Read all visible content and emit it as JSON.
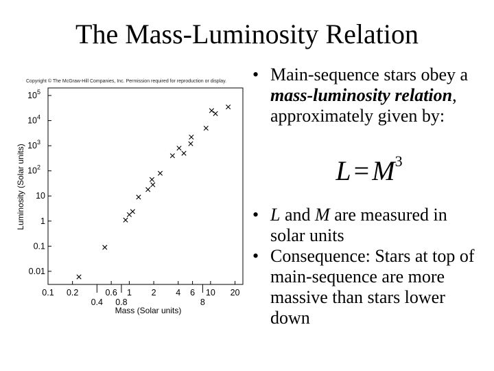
{
  "slide": {
    "title": "The Mass-Luminosity Relation"
  },
  "bullets": {
    "b1": {
      "pre": "Main-sequence stars obey a ",
      "em": "mass-luminosity relation",
      "post": ", approximately given by:"
    },
    "formula": {
      "lhs": "L",
      "eq": "=",
      "rhs": "M",
      "exp": "3"
    },
    "b2": {
      "v1": "L",
      "mid": " and ",
      "v2": "M",
      "post": " are measured in solar units"
    },
    "b3": {
      "text": "Consequence: Stars at top of main-sequence are more massive than stars lower down"
    }
  },
  "chart_data": {
    "type": "scatter",
    "copyright": "Copyright © The McGraw-Hill Companies, Inc. Permission required for reproduction or display.",
    "xlabel": "Mass (Solar units)",
    "ylabel": "Luminosity (Solar units)",
    "x_scale": "log",
    "y_scale": "log",
    "xlim": [
      0.1,
      25
    ],
    "ylim": [
      0.003,
      200000
    ],
    "x_ticks_row1": [
      {
        "v": 0.1,
        "label": "0.1"
      },
      {
        "v": 0.2,
        "label": "0.2"
      },
      {
        "v": 0.6,
        "label": "0.6"
      },
      {
        "v": 1,
        "label": "1"
      },
      {
        "v": 2,
        "label": "2"
      },
      {
        "v": 4,
        "label": "4"
      },
      {
        "v": 6,
        "label": "6"
      },
      {
        "v": 10,
        "label": "10"
      },
      {
        "v": 20,
        "label": "20"
      }
    ],
    "x_ticks_row2": [
      {
        "v": 0.4,
        "label": "0.4"
      },
      {
        "v": 0.8,
        "label": "0.8"
      },
      {
        "v": 8,
        "label": "8"
      }
    ],
    "y_ticks": [
      {
        "v": 0.01,
        "label": "0.01"
      },
      {
        "v": 0.1,
        "label": "0.1"
      },
      {
        "v": 1,
        "label": "1"
      },
      {
        "v": 10,
        "label": "10"
      },
      {
        "v": 100,
        "label": "10",
        "exp": "2"
      },
      {
        "v": 1000,
        "label": "10",
        "exp": "3"
      },
      {
        "v": 10000,
        "label": "10",
        "exp": "4"
      },
      {
        "v": 100000,
        "label": "10",
        "exp": "5"
      }
    ],
    "points": [
      {
        "x": 0.24,
        "y": 0.006
      },
      {
        "x": 0.5,
        "y": 0.09
      },
      {
        "x": 0.9,
        "y": 1.1
      },
      {
        "x": 1.0,
        "y": 1.8
      },
      {
        "x": 1.1,
        "y": 2.4
      },
      {
        "x": 1.3,
        "y": 9
      },
      {
        "x": 1.7,
        "y": 18
      },
      {
        "x": 1.9,
        "y": 45
      },
      {
        "x": 1.95,
        "y": 28
      },
      {
        "x": 2.4,
        "y": 80
      },
      {
        "x": 3.4,
        "y": 400
      },
      {
        "x": 4.1,
        "y": 800
      },
      {
        "x": 4.7,
        "y": 500
      },
      {
        "x": 5.7,
        "y": 1200
      },
      {
        "x": 5.8,
        "y": 2200
      },
      {
        "x": 8.8,
        "y": 5000
      },
      {
        "x": 10.3,
        "y": 25000
      },
      {
        "x": 11.5,
        "y": 19000
      },
      {
        "x": 16.5,
        "y": 35000
      }
    ]
  }
}
